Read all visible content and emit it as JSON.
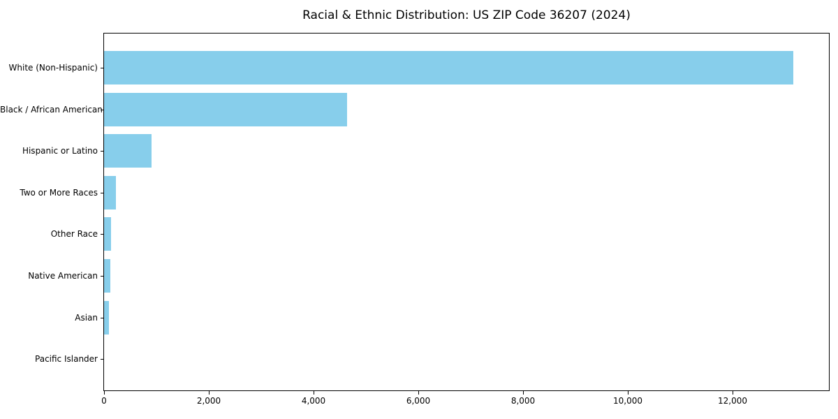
{
  "chart_data": {
    "type": "bar",
    "orientation": "horizontal",
    "title": "Racial & Ethnic Distribution: US ZIP Code 36207 (2024)",
    "categories": [
      "White (Non-Hispanic)",
      "Black / African American",
      "Hispanic or Latino",
      "Two or More Races",
      "Other Race",
      "Native American",
      "Asian",
      "Pacific Islander"
    ],
    "values": [
      13160,
      4640,
      905,
      225,
      130,
      120,
      95,
      0
    ],
    "xlabel": "",
    "ylabel": "",
    "xlim": [
      0,
      13840
    ],
    "xticks": [
      0,
      2000,
      4000,
      6000,
      8000,
      10000,
      12000
    ],
    "xtick_labels": [
      "0",
      "2,000",
      "4,000",
      "6,000",
      "8,000",
      "10,000",
      "12,000"
    ],
    "bar_color": "#87CEEB",
    "background_color": "#ffffff",
    "grid": false,
    "legend_position": "none"
  }
}
